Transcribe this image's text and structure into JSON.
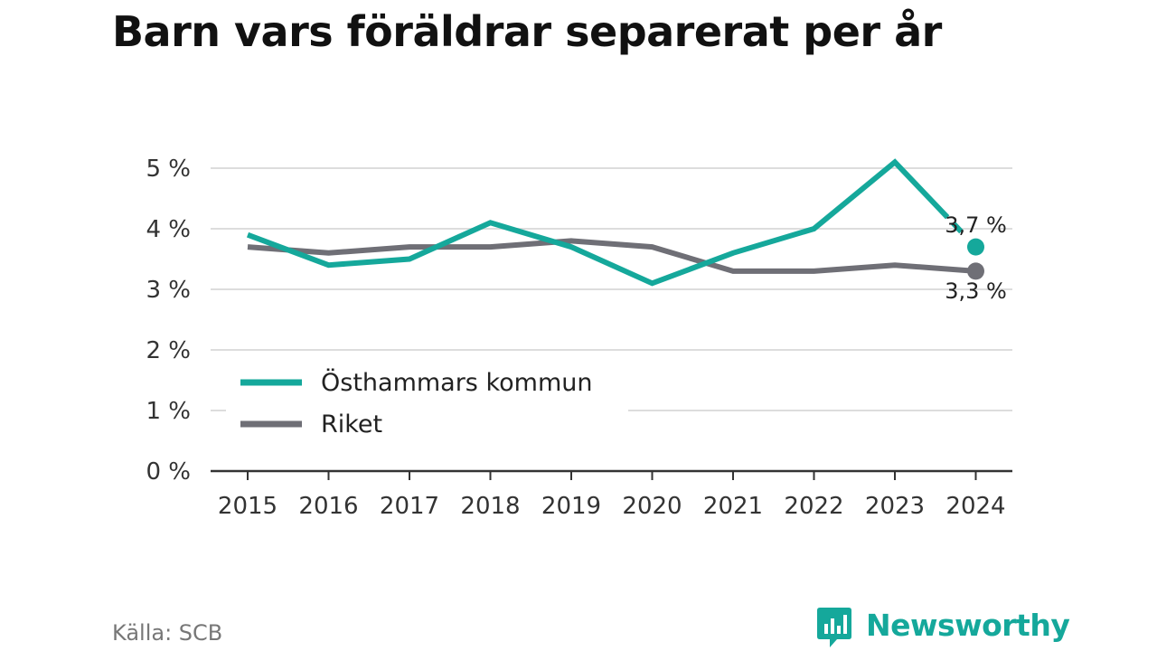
{
  "title": "Barn vars föräldrar separerat per år",
  "source": "Källa: SCB",
  "brand": {
    "name": "Newsworthy",
    "icon": "newsworthy-logo-icon"
  },
  "colors": {
    "series_primary": "#15a89b",
    "series_secondary": "#6f6f76",
    "grid": "#dddddd",
    "axis": "#333333",
    "brand": "#15a89b"
  },
  "chart_data": {
    "type": "line",
    "title": "Barn vars föräldrar separerat per år",
    "x": [
      "2015",
      "2016",
      "2017",
      "2018",
      "2019",
      "2020",
      "2021",
      "2022",
      "2023",
      "2024"
    ],
    "ylim": [
      0,
      5
    ],
    "yticks": [
      0,
      1,
      2,
      3,
      4,
      5
    ],
    "ytick_labels": [
      "0 %",
      "1 %",
      "2 %",
      "3 %",
      "4 %",
      "5 %"
    ],
    "grid": true,
    "legend_position": "bottom-left",
    "series": [
      {
        "name": "Östhammars kommun",
        "values": [
          3.9,
          3.4,
          3.5,
          4.1,
          3.7,
          3.1,
          3.6,
          4.0,
          5.1,
          3.7
        ],
        "end_label": "3,7 %"
      },
      {
        "name": "Riket",
        "values": [
          3.7,
          3.6,
          3.7,
          3.7,
          3.8,
          3.7,
          3.3,
          3.3,
          3.4,
          3.3
        ],
        "end_label": "3,3 %"
      }
    ]
  }
}
